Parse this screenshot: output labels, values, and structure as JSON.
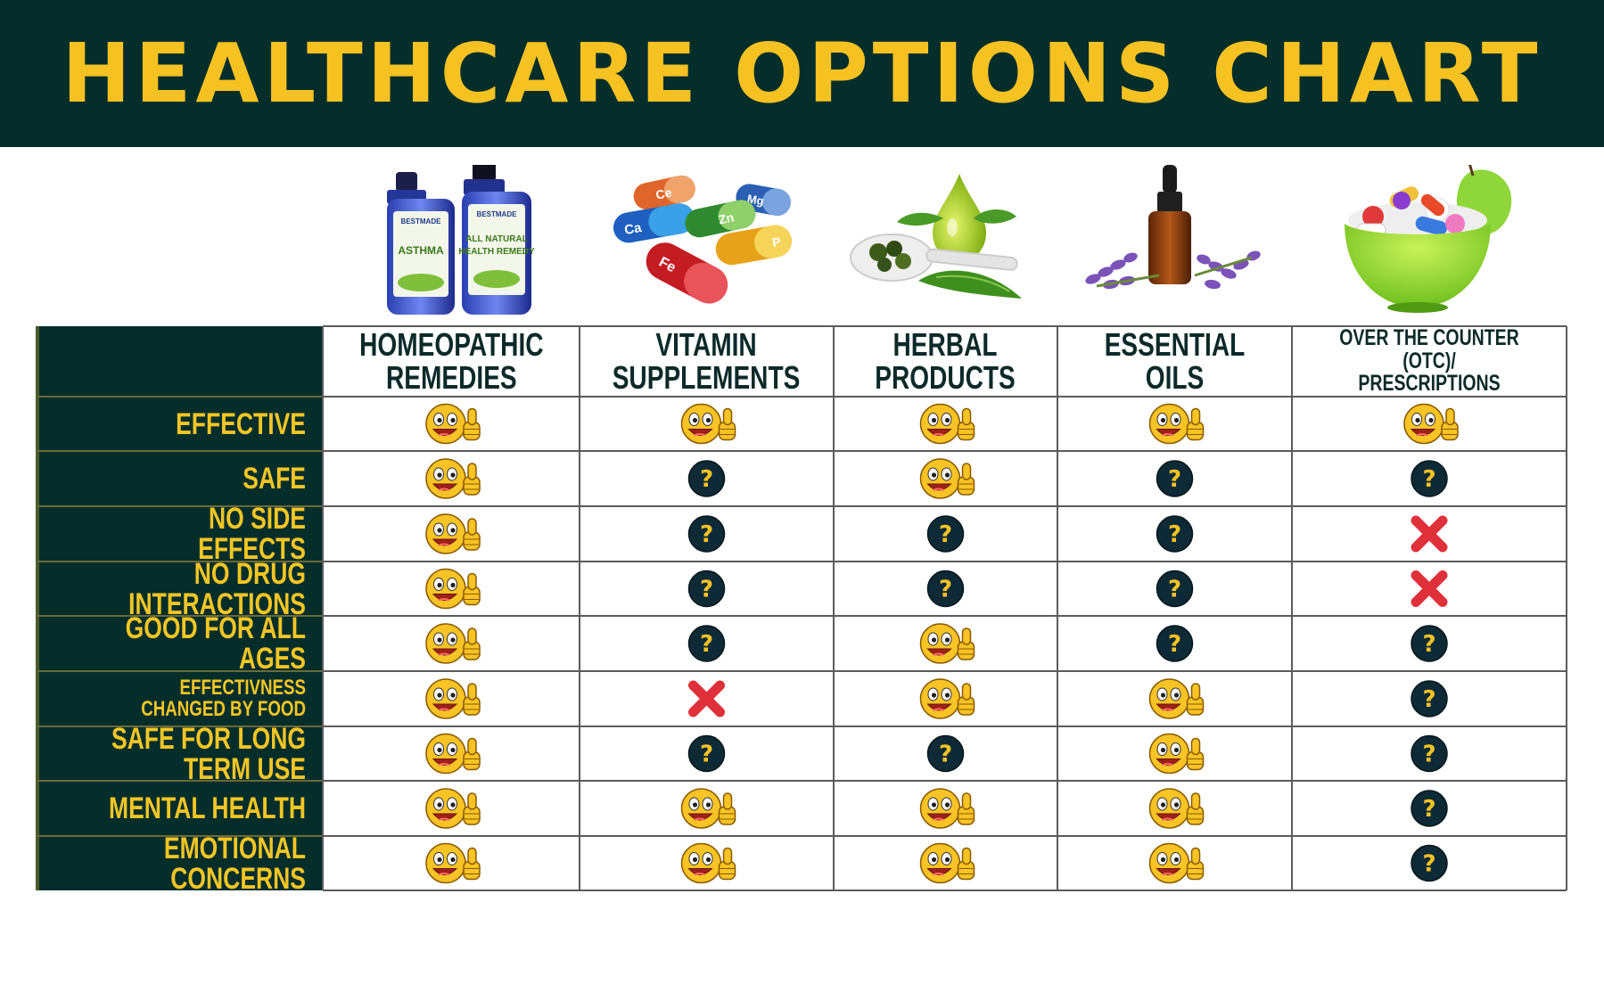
{
  "title": "HEALTHCARE OPTIONS CHART",
  "colors": {
    "banner": "#052e2b",
    "accent": "#f5c222",
    "cell_text": "#0d2a2a",
    "grid": "#5b5b5b",
    "cross": "#e0303a",
    "emoji": "#f7c325"
  },
  "legend": {
    "thumbs-up-emoji-icon": "yes",
    "question-mark-icon": "unknown",
    "red-x-icon": "no"
  },
  "chart_data": {
    "type": "table",
    "title": "HEALTHCARE OPTIONS CHART",
    "columns": [
      {
        "line1": "HOMEOPATHIC",
        "line2": "REMEDIES"
      },
      {
        "line1": "VITAMIN",
        "line2": "SUPPLEMENTS"
      },
      {
        "line1": "HERBAL",
        "line2": "PRODUCTS"
      },
      {
        "line1": "ESSENTIAL OILS",
        "line2": ""
      },
      {
        "line1": "OVER THE COUNTER (OTC)/",
        "line2": "PRESCRIPTIONS"
      }
    ],
    "rows": [
      {
        "label": [
          "EFFECTIVE"
        ],
        "values": [
          "yes",
          "yes",
          "yes",
          "yes",
          "yes"
        ]
      },
      {
        "label": [
          "SAFE"
        ],
        "values": [
          "yes",
          "unknown",
          "yes",
          "unknown",
          "unknown"
        ]
      },
      {
        "label": [
          "NO SIDE EFFECTS"
        ],
        "values": [
          "yes",
          "unknown",
          "unknown",
          "unknown",
          "no"
        ]
      },
      {
        "label": [
          "NO DRUG INTERACTIONS"
        ],
        "values": [
          "yes",
          "unknown",
          "unknown",
          "unknown",
          "no"
        ]
      },
      {
        "label": [
          "GOOD FOR ALL AGES"
        ],
        "values": [
          "yes",
          "unknown",
          "yes",
          "unknown",
          "unknown"
        ]
      },
      {
        "label": [
          "EFFECTIVNESS",
          "CHANGED BY FOOD"
        ],
        "values": [
          "yes",
          "no",
          "yes",
          "yes",
          "unknown"
        ]
      },
      {
        "label": [
          "SAFE FOR LONG TERM USE"
        ],
        "values": [
          "yes",
          "unknown",
          "unknown",
          "yes",
          "unknown"
        ]
      },
      {
        "label": [
          "MENTAL HEALTH"
        ],
        "values": [
          "yes",
          "yes",
          "yes",
          "yes",
          "unknown"
        ]
      },
      {
        "label": [
          "EMOTIONAL CONCERNS"
        ],
        "values": [
          "yes",
          "yes",
          "yes",
          "yes",
          "unknown"
        ]
      }
    ],
    "product_images": [
      {
        "icon": "homeopathic-bottles-icon",
        "bottle_labels": [
          "BESTMADE",
          "ASTHMA",
          "BESTMADE",
          "ALL NATURAL",
          "HEALTH REMEDY"
        ]
      },
      {
        "icon": "vitamin-capsules-icon",
        "capsule_labels": [
          "Ca",
          "Zn",
          "Fe",
          "Ce",
          "Mg",
          "P"
        ]
      },
      {
        "icon": "herbal-spoon-icon"
      },
      {
        "icon": "essential-oil-bottle-icon"
      },
      {
        "icon": "pill-bowl-icon"
      }
    ]
  }
}
